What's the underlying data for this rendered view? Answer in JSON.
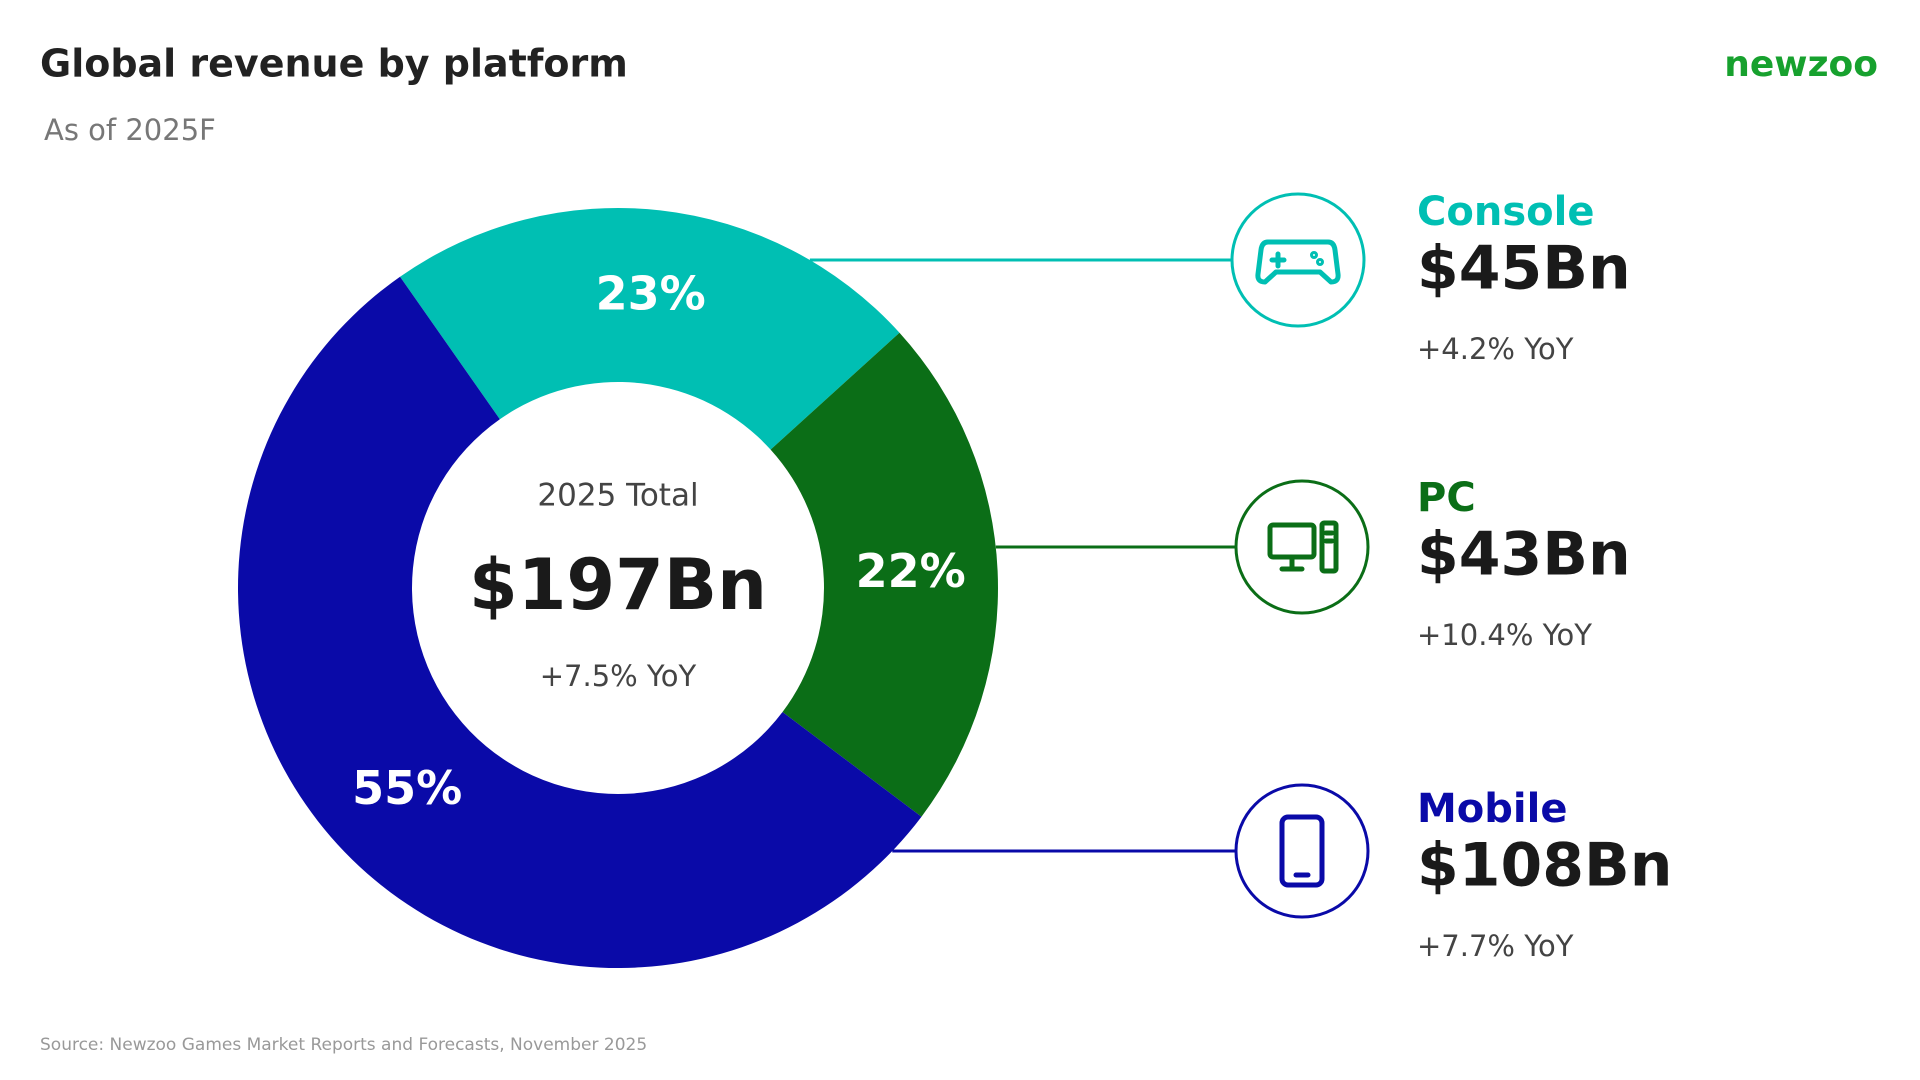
{
  "chart_data": {
    "type": "pie",
    "donut": true,
    "title": "Global revenue by platform",
    "subtitle": "As of 2025F",
    "brand": "newzoo",
    "categories": [
      "Console",
      "PC",
      "Mobile"
    ],
    "values": [
      23,
      22,
      55
    ],
    "value_labels": [
      "23%",
      "22%",
      "55%"
    ],
    "colors": [
      "#00bfb3",
      "#0b6e17",
      "#0a0aa8"
    ],
    "details": [
      {
        "revenue": "$45Bn",
        "growth": "+4.2% YoY"
      },
      {
        "revenue": "$43Bn",
        "growth": "+10.4% YoY"
      },
      {
        "revenue": "$108Bn",
        "growth": "+7.7% YoY"
      }
    ],
    "center_label": "2025 Total",
    "center_value": "$197Bn",
    "center_growth": "+7.5% YoY",
    "source": "Source: Newzoo Games Market Reports and Forecasts, November 2025"
  }
}
